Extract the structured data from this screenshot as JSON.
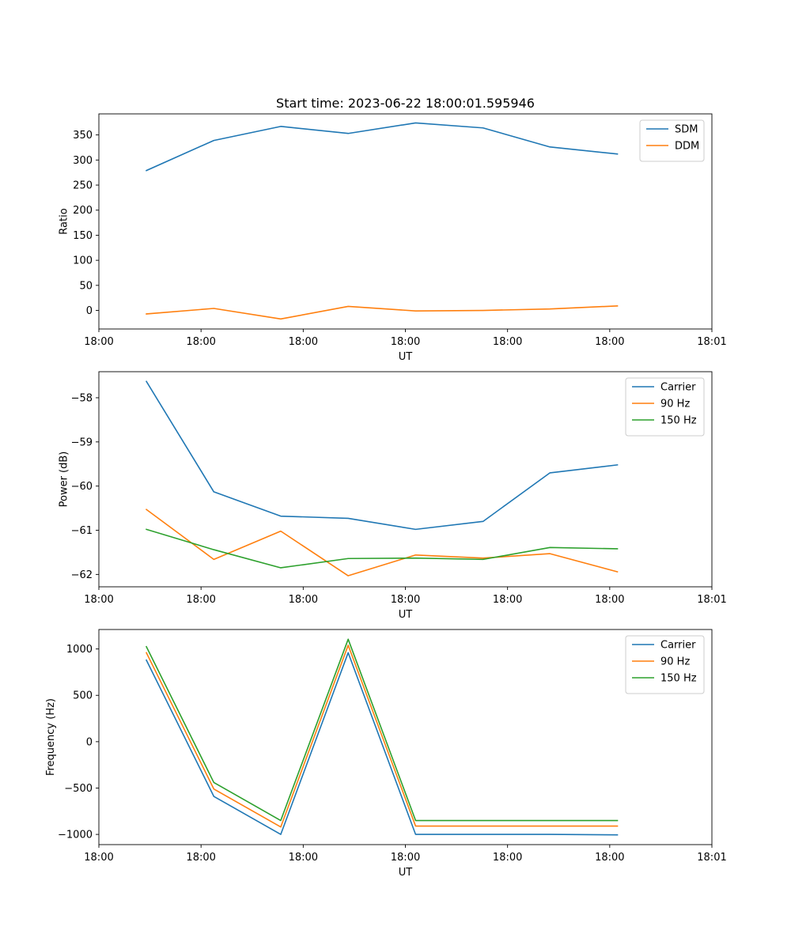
{
  "chart_data": [
    {
      "type": "line",
      "title": "Start time: 2023-06-22 18:00:01.595946",
      "xlabel": "UT",
      "ylabel": "Ratio",
      "xlim": [
        0,
        12
      ],
      "ylim": [
        -37,
        392
      ],
      "xticks": [
        0,
        2,
        4,
        6,
        8,
        10,
        12
      ],
      "xtick_labels": [
        "18:00",
        "18:00",
        "18:00",
        "18:00",
        "18:00",
        "18:00",
        "18:01"
      ],
      "yticks": [
        0,
        50,
        100,
        150,
        200,
        250,
        300,
        350
      ],
      "ytick_labels": [
        "0",
        "50",
        "100",
        "150",
        "200",
        "250",
        "300",
        "350"
      ],
      "x": [
        0.93,
        2.25,
        3.56,
        4.88,
        6.2,
        7.52,
        8.83,
        10.15
      ],
      "series": [
        {
          "name": "SDM",
          "color": "#1f77b4",
          "values": [
            279,
            339,
            367,
            353,
            374,
            364,
            326,
            312
          ]
        },
        {
          "name": "DDM",
          "color": "#ff7f0e",
          "values": [
            -7,
            4,
            -17,
            8,
            -1,
            0,
            3,
            9
          ]
        }
      ],
      "legend": "top-right",
      "grid": false
    },
    {
      "type": "line",
      "title": "",
      "xlabel": "UT",
      "ylabel": "Power (dB)",
      "xlim": [
        0,
        12
      ],
      "ylim": [
        -62.28,
        -57.41
      ],
      "xticks": [
        0,
        2,
        4,
        6,
        8,
        10,
        12
      ],
      "xtick_labels": [
        "18:00",
        "18:00",
        "18:00",
        "18:00",
        "18:00",
        "18:00",
        "18:01"
      ],
      "yticks": [
        -62,
        -61,
        -60,
        -59,
        -58
      ],
      "ytick_labels": [
        "−62",
        "−61",
        "−60",
        "−59",
        "−58"
      ],
      "x": [
        0.93,
        2.25,
        3.56,
        4.88,
        6.2,
        7.52,
        8.83,
        10.15
      ],
      "series": [
        {
          "name": "Carrier",
          "color": "#1f77b4",
          "values": [
            -57.63,
            -60.13,
            -60.68,
            -60.73,
            -60.98,
            -60.8,
            -59.7,
            -59.52
          ]
        },
        {
          "name": "90 Hz",
          "color": "#ff7f0e",
          "values": [
            -60.53,
            -61.66,
            -61.02,
            -62.03,
            -61.56,
            -61.63,
            -61.53,
            -61.94
          ]
        },
        {
          "name": "150 Hz",
          "color": "#2ca02c",
          "values": [
            -60.98,
            -61.44,
            -61.85,
            -61.64,
            -61.63,
            -61.66,
            -61.39,
            -61.42
          ]
        }
      ],
      "legend": "top-right",
      "grid": false
    },
    {
      "type": "line",
      "title": "",
      "xlabel": "UT",
      "ylabel": "Frequency (Hz)",
      "xlim": [
        0,
        12
      ],
      "ylim": [
        -1110,
        1210
      ],
      "xticks": [
        0,
        2,
        4,
        6,
        8,
        10,
        12
      ],
      "xtick_labels": [
        "18:00",
        "18:00",
        "18:00",
        "18:00",
        "18:00",
        "18:00",
        "18:01"
      ],
      "yticks": [
        -1000,
        -500,
        0,
        500,
        1000
      ],
      "ytick_labels": [
        "−1000",
        "−500",
        "0",
        "500",
        "1000"
      ],
      "x": [
        0.93,
        2.25,
        3.56,
        4.88,
        6.2,
        7.52,
        8.83,
        10.15
      ],
      "series": [
        {
          "name": "Carrier",
          "color": "#1f77b4",
          "values": [
            880,
            -590,
            -1000,
            960,
            -1000,
            -1000,
            -1000,
            -1005
          ]
        },
        {
          "name": "90 Hz",
          "color": "#ff7f0e",
          "values": [
            960,
            -510,
            -920,
            1040,
            -910,
            -910,
            -910,
            -910
          ]
        },
        {
          "name": "150 Hz",
          "color": "#2ca02c",
          "values": [
            1025,
            -440,
            -850,
            1105,
            -850,
            -850,
            -850,
            -850
          ]
        }
      ],
      "legend": "top-right",
      "grid": false
    }
  ]
}
